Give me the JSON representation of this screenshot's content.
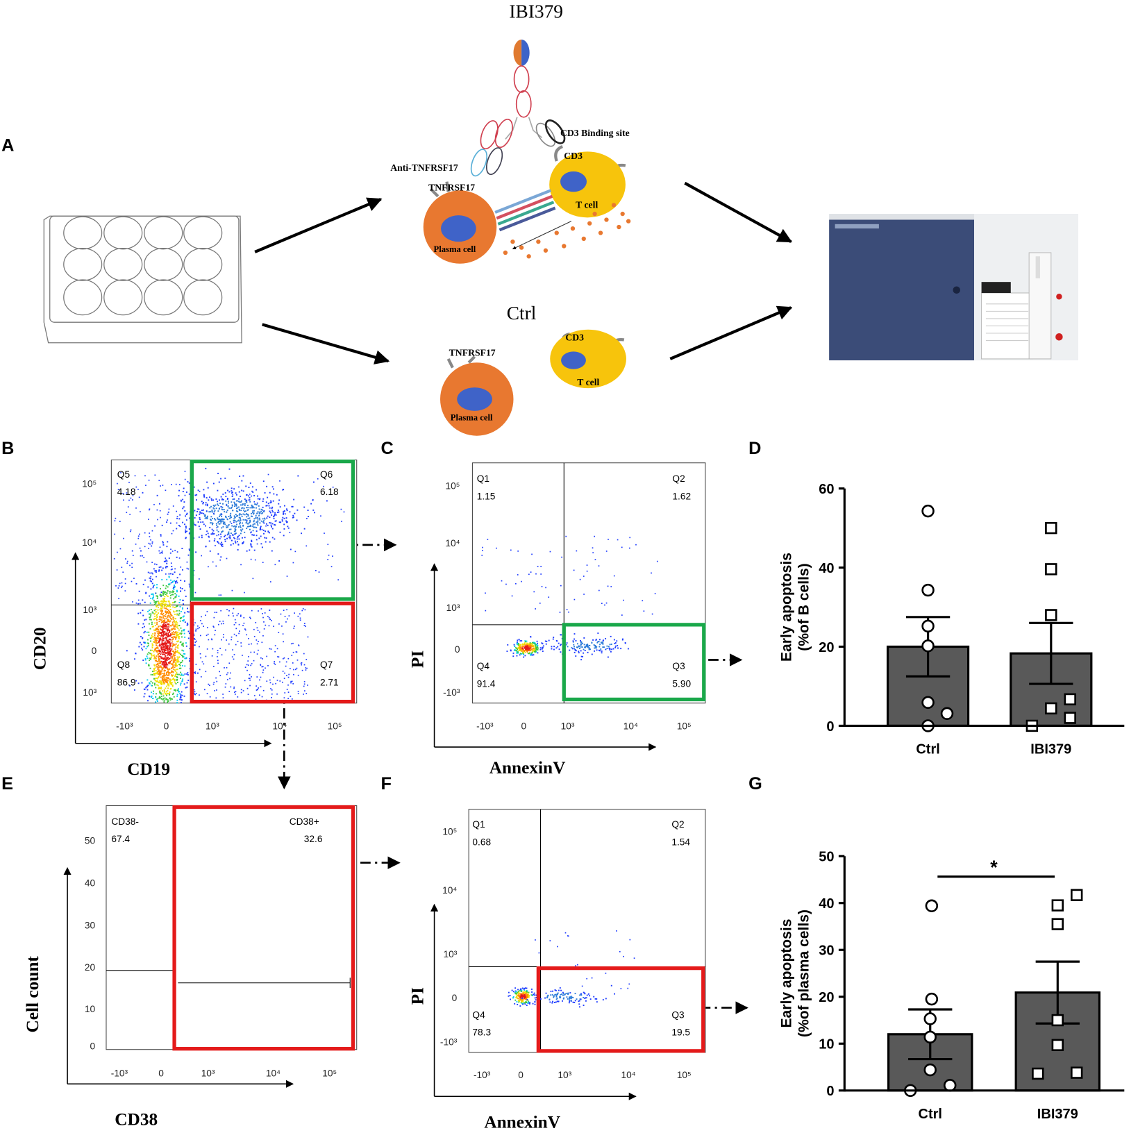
{
  "panel_labels": [
    "A",
    "B",
    "C",
    "D",
    "E",
    "F",
    "G"
  ],
  "diagram": {
    "treated": {
      "title": "IBI379",
      "cd3_binding_site": "CD3 Binding site",
      "anti_tnfrsf17": "Anti-TNFRSF17",
      "tnfrsf17": "TNFRSF17",
      "cd3": "CD3",
      "t_cell": "T cell",
      "plasma_cell": "Plasma cell"
    },
    "control": {
      "title": "Ctrl",
      "tnfrsf17": "TNFRSF17",
      "cd3": "CD3",
      "t_cell": "T cell",
      "plasma_cell": "Plasma cell"
    }
  },
  "flow_plots": [
    {
      "x_label": "CD19",
      "y_label": "CD20",
      "gates": [
        {
          "name": "Q5",
          "value": "4.18"
        },
        {
          "name": "Q6",
          "value": "6.18"
        },
        {
          "name": "Q8",
          "value": "86.9"
        },
        {
          "name": "Q7",
          "value": "2.71"
        }
      ],
      "xticks": [
        "-10³",
        "0",
        "10³",
        "10⁴",
        "10⁵"
      ],
      "yticks": [
        "10⁵",
        "10⁴",
        "10³",
        "0",
        "10³"
      ]
    },
    {
      "x_label": "AnnexinV",
      "y_label": "PI",
      "gates": [
        {
          "name": "Q1",
          "value": "1.15"
        },
        {
          "name": "Q2",
          "value": "1.62"
        },
        {
          "name": "Q4",
          "value": "91.4"
        },
        {
          "name": "Q3",
          "value": "5.90"
        }
      ],
      "xticks": [
        "-10³",
        "0",
        "10³",
        "10⁴",
        "10⁵"
      ],
      "yticks": [
        "10⁵",
        "10⁴",
        "10³",
        "0",
        "-10³"
      ]
    },
    {
      "x_label": "CD38",
      "y_label": "Cell count",
      "gates": [
        {
          "name": "CD38-",
          "value": "67.4"
        },
        {
          "name": "CD38+",
          "value": "32.6"
        }
      ],
      "xticks": [
        "-10³",
        "0",
        "10³",
        "10⁴",
        "10⁵"
      ],
      "yticks": [
        "50",
        "40",
        "30",
        "20",
        "10",
        "0"
      ]
    },
    {
      "x_label": "AnnexinV",
      "y_label": "PI",
      "gates": [
        {
          "name": "Q1",
          "value": "0.68"
        },
        {
          "name": "Q2",
          "value": "1.54"
        },
        {
          "name": "Q4",
          "value": "78.3"
        },
        {
          "name": "Q3",
          "value": "19.5"
        }
      ],
      "xticks": [
        "-10³",
        "0",
        "10³",
        "10⁴",
        "10⁵"
      ],
      "yticks": [
        "10⁵",
        "10⁴",
        "10³",
        "0",
        "-10³"
      ]
    }
  ],
  "chart_data": [
    {
      "type": "bar",
      "ylabel": [
        "Early apoptosis",
        "(%of B cells)"
      ],
      "categories": [
        "Ctrl",
        "IBI379"
      ],
      "values": [
        20,
        18.3
      ],
      "errors": [
        7.5,
        7.7
      ],
      "color": "#595959",
      "points": [
        [
          54.3,
          34.3,
          25.2,
          20.2,
          5.9,
          3.1,
          0
        ],
        [
          50,
          39.6,
          28,
          6.7,
          4.4,
          2,
          0
        ]
      ],
      "markers": [
        "circle",
        "square"
      ],
      "ylim": [
        0,
        60
      ],
      "yticks": [
        0,
        20,
        40,
        60
      ]
    },
    {
      "type": "bar",
      "ylabel": [
        "Early apoptosis",
        "(%of plasma cells)"
      ],
      "categories": [
        "Ctrl",
        "IBI379"
      ],
      "values": [
        12,
        20.9
      ],
      "errors": [
        5.3,
        6.6
      ],
      "color": "#595959",
      "points": [
        [
          39.4,
          19.5,
          15.3,
          11.4,
          4.4,
          0,
          1.1
        ],
        [
          41.7,
          39.5,
          35.5,
          15,
          9.7,
          3.6,
          3.8
        ]
      ],
      "markers": [
        "circle",
        "square"
      ],
      "ylim": [
        0,
        50
      ],
      "yticks": [
        0,
        10,
        20,
        30,
        40,
        50
      ],
      "annotation": "*"
    }
  ]
}
